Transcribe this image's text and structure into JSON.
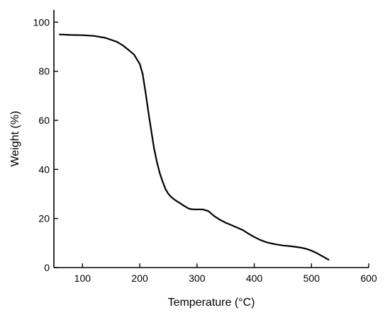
{
  "chart_data": {
    "type": "line",
    "title": "",
    "xlabel": "Temperature (°C)",
    "ylabel": "Weight (%)",
    "xlim": [
      50,
      600
    ],
    "ylim": [
      0,
      105
    ],
    "x_ticks": [
      100,
      200,
      300,
      400,
      500,
      600
    ],
    "y_ticks": [
      0,
      20,
      40,
      60,
      80,
      100
    ],
    "x_tick_labels": [
      "100",
      "200",
      "300",
      "400",
      "500",
      "600"
    ],
    "y_tick_labels": [
      "0",
      "20",
      "40",
      "60",
      "80",
      "100"
    ],
    "grid": false,
    "legend": "none",
    "series": [
      {
        "x": [
          60,
          80,
          100,
          120,
          140,
          160,
          170,
          180,
          190,
          200,
          205,
          210,
          215,
          220,
          225,
          230,
          235,
          240,
          245,
          250,
          255,
          260,
          265,
          270,
          275,
          280,
          285,
          290,
          295,
          300,
          310,
          320,
          330,
          340,
          350,
          360,
          370,
          380,
          390,
          400,
          410,
          420,
          430,
          440,
          450,
          460,
          470,
          480,
          490,
          500,
          510,
          520,
          530
        ],
        "y": [
          95.0,
          94.8,
          94.7,
          94.4,
          93.6,
          92.0,
          90.6,
          88.8,
          86.8,
          83.0,
          79.0,
          71.5,
          63.5,
          56.0,
          48.5,
          43.0,
          38.5,
          35.0,
          32.0,
          30.0,
          28.8,
          27.8,
          27.0,
          26.3,
          25.5,
          24.8,
          24.1,
          23.8,
          23.7,
          23.7,
          23.7,
          23.0,
          21.0,
          19.5,
          18.3,
          17.3,
          16.3,
          15.3,
          13.8,
          12.5,
          11.3,
          10.4,
          9.8,
          9.4,
          9.0,
          8.8,
          8.5,
          8.2,
          7.7,
          6.9,
          5.8,
          4.5,
          3.2
        ],
        "color": "#000000"
      }
    ]
  }
}
